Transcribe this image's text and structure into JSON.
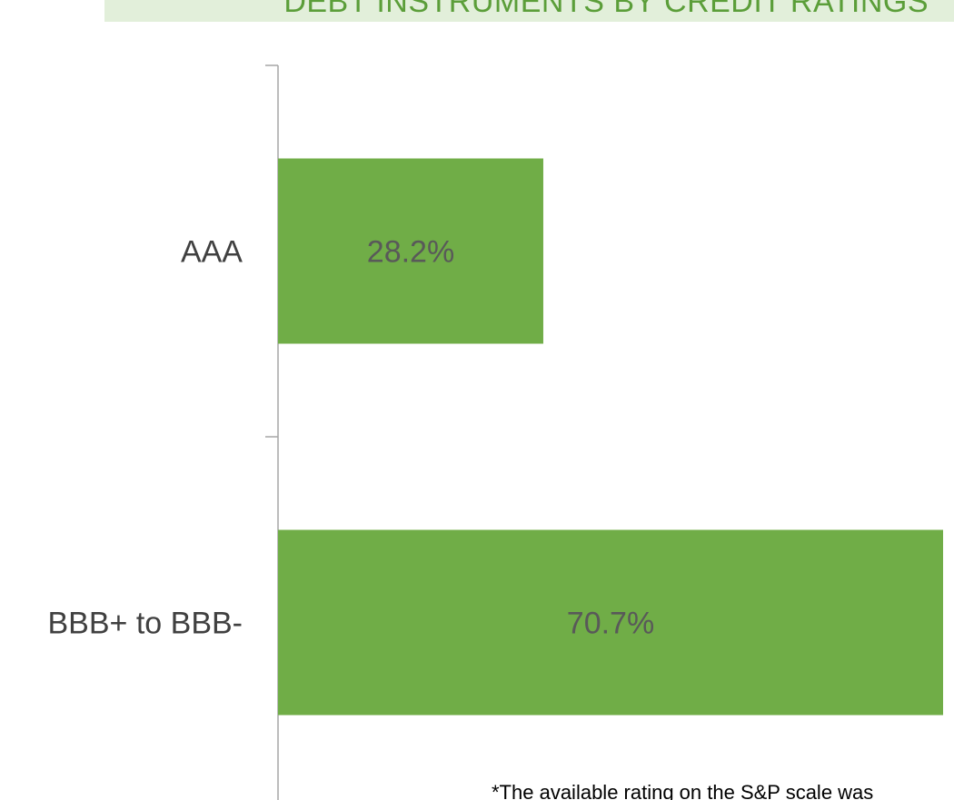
{
  "title": "DEBT INSTRUMENTS BY CREDIT RATINGS",
  "footnote": "*The available rating on the S&P scale was",
  "colors": {
    "bar": "#70ad47",
    "banner_background": "#e2efda",
    "title_text": "#5b9e39",
    "category_text": "#404040",
    "value_text": "#595959",
    "axis": "#a6a6a6"
  },
  "chart_data": {
    "type": "bar",
    "orientation": "horizontal",
    "categories": [
      "AAA",
      "BBB+ to BBB-"
    ],
    "values": [
      28.2,
      70.7
    ],
    "data_labels": [
      "28.2%",
      "70.7%"
    ],
    "unit": "%",
    "xlim": [
      0,
      70.7
    ],
    "grid": false,
    "legend": "none"
  }
}
